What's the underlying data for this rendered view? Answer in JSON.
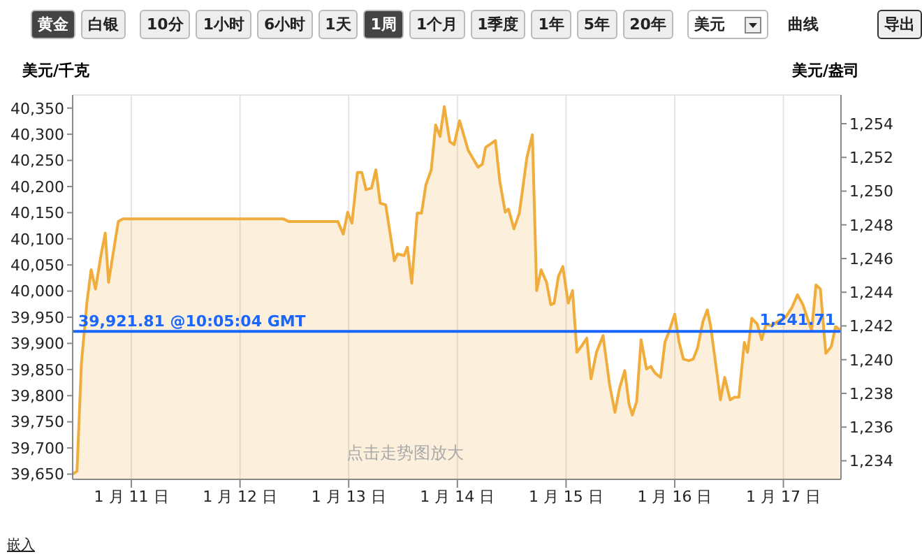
{
  "chart_data": {
    "type": "area",
    "ylabel": "美元/千克",
    "y2label": "美元/盎司",
    "x": [
      "--01-10T11:02",
      "--01-10T12:00",
      "--01-10T12:58",
      "--01-10T14:10",
      "--01-10T15:07",
      "--01-10T16:05",
      "--01-10T17:17",
      "--01-10T18:14",
      "--01-10T18:58",
      "--01-10T20:24",
      "--01-10T21:07",
      "--01-10T22:05",
      "--01-12T09:36",
      "--01-12T10:48",
      "--01-12T21:36",
      "--01-12T22:48",
      "--01-12T23:46",
      "--01-13T00:43",
      "--01-13T01:55",
      "--01-13T02:53",
      "--01-13T03:50",
      "--01-13T05:02",
      "--01-13T06:00",
      "--01-13T06:58",
      "--01-13T08:10",
      "--01-13T10:05",
      "--01-13T10:48",
      "--01-13T12:14",
      "--01-13T12:58",
      "--01-13T13:55",
      "--01-13T15:07",
      "--01-13T16:05",
      "--01-13T17:02",
      "--01-13T18:14",
      "--01-13T19:12",
      "--01-13T20:10",
      "--01-13T21:07",
      "--01-13T22:19",
      "--01-13T23:17",
      "--01-14T00:29",
      "--01-14T02:24",
      "--01-14T04:34",
      "--01-14T05:31",
      "--01-14T06:14",
      "--01-14T08:24",
      "--01-14T09:22",
      "--01-14T10:34",
      "--01-14T11:17",
      "--01-14T12:29",
      "--01-14T13:41",
      "--01-14T15:22",
      "--01-14T16:34",
      "--01-14T17:31",
      "--01-14T18:29",
      "--01-14T19:41",
      "--01-14T20:38",
      "--01-14T21:22",
      "--01-14T22:19",
      "--01-14T23:17",
      "--01-15T00:29",
      "--01-15T01:26",
      "--01-15T02:24",
      "--01-15T03:36",
      "--01-15T04:34",
      "--01-15T05:31",
      "--01-15T06:43",
      "--01-15T08:10",
      "--01-15T09:36",
      "--01-15T10:48",
      "--01-15T11:46",
      "--01-15T12:58",
      "--01-15T13:55",
      "--01-15T14:38",
      "--01-15T15:36",
      "--01-15T16:34",
      "--01-15T17:46",
      "--01-15T18:43",
      "--01-15T19:41",
      "--01-15T20:53",
      "--01-15T21:50",
      "--01-15T22:48",
      "--01-16T00:00",
      "--01-16T00:58",
      "--01-16T01:55",
      "--01-16T03:07",
      "--01-16T04:05",
      "--01-16T05:02",
      "--01-16T06:14",
      "--01-16T07:12",
      "--01-16T07:55",
      "--01-16T09:22",
      "--01-16T10:05",
      "--01-16T11:02",
      "--01-16T12:14",
      "--01-16T13:12",
      "--01-16T14:10",
      "--01-16T15:22",
      "--01-16T16:05",
      "--01-16T17:02",
      "--01-16T18:14",
      "--01-16T19:12",
      "--01-16T20:10",
      "--01-16T21:22",
      "--01-16T22:48",
      "--01-17T00:29",
      "--01-17T01:55",
      "--01-17T03:07",
      "--01-17T04:19",
      "--01-17T06:14",
      "--01-17T07:12",
      "--01-17T08:10",
      "--01-17T09:22",
      "--01-17T10:34",
      "--01-17T11:31",
      "--01-17T12:29"
    ],
    "series": [
      {
        "color": "#f0ad3c",
        "values": [
          39650,
          39656,
          39862,
          39977,
          40041,
          40004,
          40068,
          40111,
          40017,
          40095,
          40133,
          40138,
          40138,
          40133,
          40133,
          40109,
          40151,
          40130,
          40227,
          40227,
          40194,
          40197,
          40232,
          40168,
          40165,
          40058,
          40071,
          40068,
          40084,
          40015,
          40149,
          40149,
          40203,
          40232,
          40318,
          40296,
          40353,
          40286,
          40280,
          40326,
          40269,
          40237,
          40243,
          40275,
          40288,
          40210,
          40151,
          40157,
          40119,
          40149,
          40256,
          40299,
          40001,
          40041,
          40017,
          39974,
          39977,
          40028,
          40047,
          39977,
          40001,
          39883,
          39897,
          39910,
          39832,
          39883,
          39915,
          39822,
          39768,
          39813,
          39848,
          39784,
          39763,
          39789,
          39907,
          39851,
          39856,
          39843,
          39835,
          39902,
          39924,
          39956,
          39902,
          39870,
          39867,
          39870,
          39891,
          39942,
          39964,
          39934,
          39840,
          39792,
          39835,
          39792,
          39797,
          39797,
          39902,
          39883,
          39948,
          39937,
          39907,
          39937,
          39934,
          39942,
          39950,
          39969,
          39993,
          39974,
          39924,
          40012,
          40004,
          39881,
          39894,
          39932,
          39926
        ]
      }
    ],
    "xlim": [
      "--01-10T11:02",
      "--01-17T12:43"
    ],
    "xticks": [
      {
        "value": "--01-11",
        "label": "1 月 11 日"
      },
      {
        "value": "--01-12",
        "label": "1 月 12 日"
      },
      {
        "value": "--01-13",
        "label": "1 月 13 日"
      },
      {
        "value": "--01-14",
        "label": "1 月 14 日"
      },
      {
        "value": "--01-15",
        "label": "1 月 15 日"
      },
      {
        "value": "--01-16",
        "label": "1 月 16 日"
      },
      {
        "value": "--01-17",
        "label": "1 月 17 日"
      }
    ],
    "ylim": [
      39640,
      40375
    ],
    "yticks": [
      {
        "value": 39650,
        "label": "39,650"
      },
      {
        "value": 39700,
        "label": "39,700"
      },
      {
        "value": 39750,
        "label": "39,750"
      },
      {
        "value": 39800,
        "label": "39,800"
      },
      {
        "value": 39850,
        "label": "39,850"
      },
      {
        "value": 39900,
        "label": "39,900"
      },
      {
        "value": 39950,
        "label": "39,950"
      },
      {
        "value": 40000,
        "label": "40,000"
      },
      {
        "value": 40050,
        "label": "40,050"
      },
      {
        "value": 40100,
        "label": "40,100"
      },
      {
        "value": 40150,
        "label": "40,150"
      },
      {
        "value": 40200,
        "label": "40,200"
      },
      {
        "value": 40250,
        "label": "40,250"
      },
      {
        "value": 40300,
        "label": "40,300"
      },
      {
        "value": 40350,
        "label": "40,350"
      }
    ],
    "y2lim": [
      1232.9,
      1255.7
    ],
    "y2ticks": [
      {
        "value": 1234,
        "label": "1,234"
      },
      {
        "value": 1236,
        "label": "1,236"
      },
      {
        "value": 1238,
        "label": "1,238"
      },
      {
        "value": 1240,
        "label": "1,240"
      },
      {
        "value": 1242,
        "label": "1,242"
      },
      {
        "value": 1244,
        "label": "1,244"
      },
      {
        "value": 1246,
        "label": "1,246"
      },
      {
        "value": 1248,
        "label": "1,248"
      },
      {
        "value": 1250,
        "label": "1,250"
      },
      {
        "value": 1252,
        "label": "1,252"
      },
      {
        "value": 1254,
        "label": "1,254"
      }
    ],
    "ref_lines": [
      {
        "axis": "y",
        "value": 39921.81,
        "label": "39,921.81 @10:05:04 GMT",
        "color": "#1a66ff"
      },
      {
        "axis": "y2",
        "value": 1241.71,
        "label": "1,241.71",
        "color": "#1a66ff"
      }
    ],
    "grid": true,
    "legend": false,
    "annotations": [
      "黄金",
      "白银",
      "10分",
      "1小时",
      "6小时",
      "1天",
      "1周",
      "1个月",
      "1季度",
      "1年",
      "5年",
      "20年",
      "美元",
      "曲线",
      "导出",
      "点击走势图放大",
      "嵌入"
    ]
  }
}
